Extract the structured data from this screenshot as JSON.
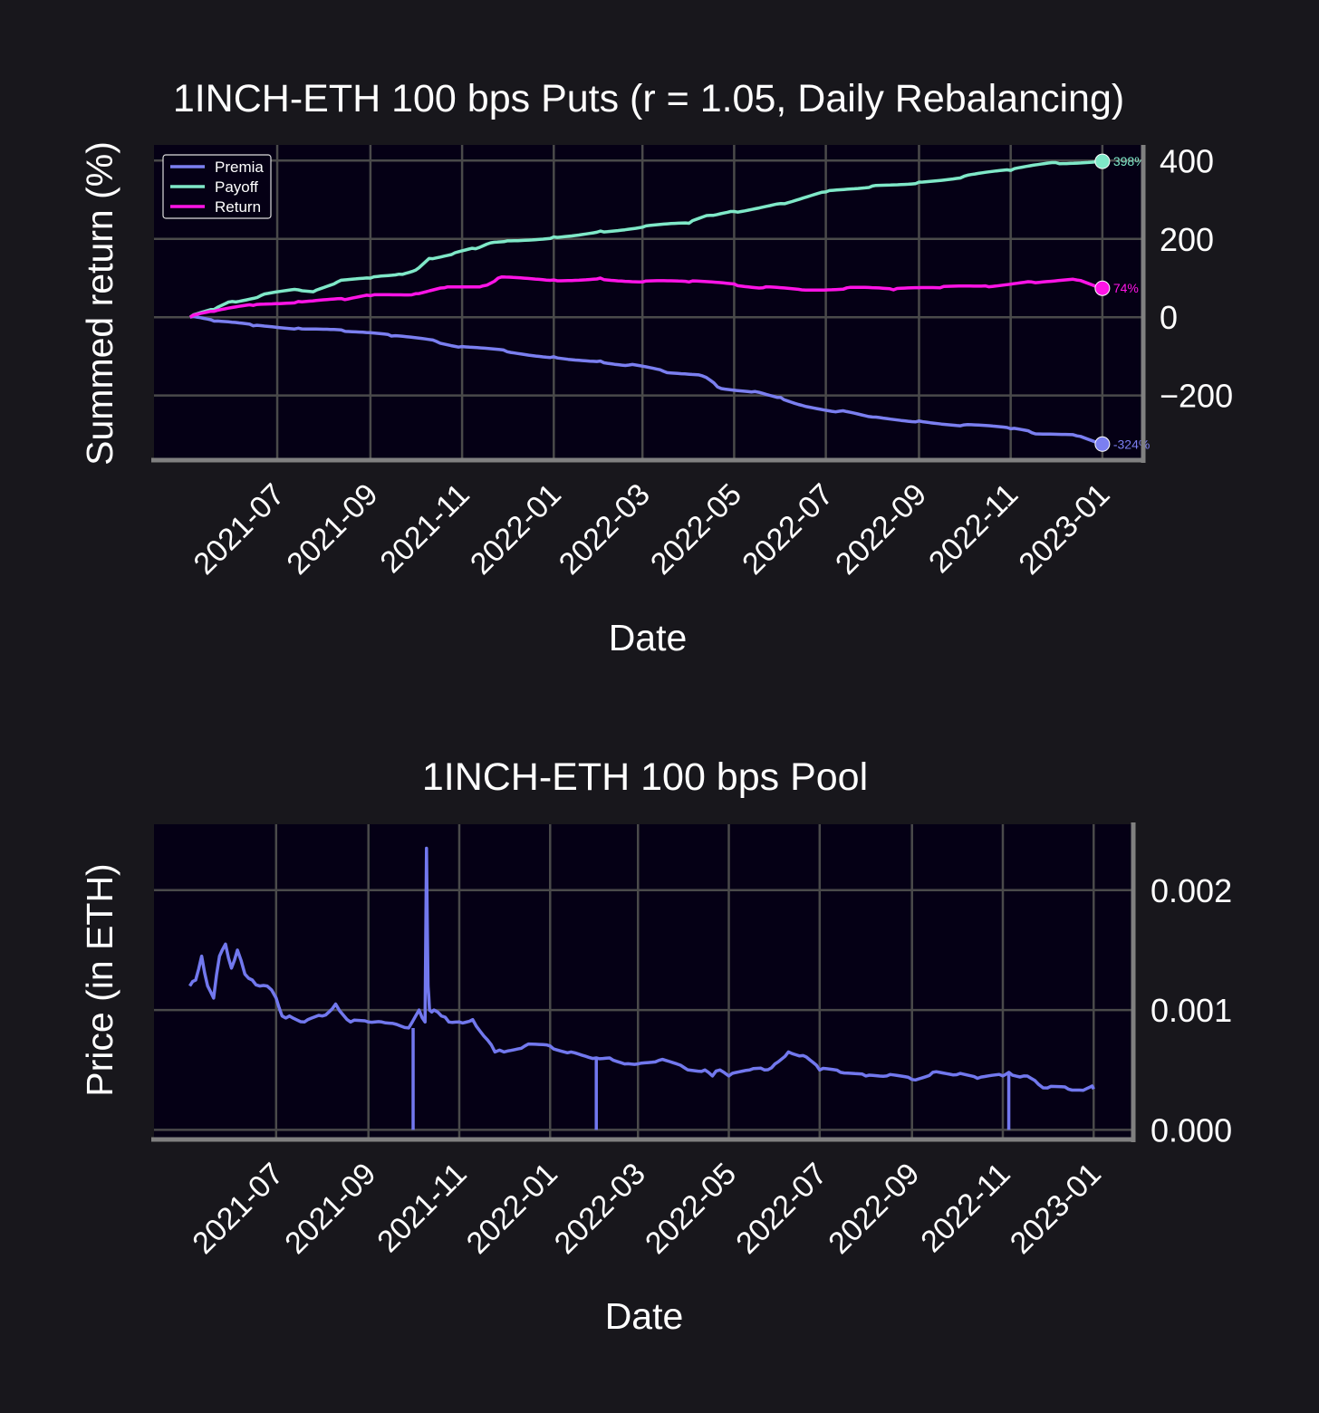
{
  "chart_data": [
    {
      "type": "line",
      "title": "1INCH-ETH 100 bps Puts (r = 1.05, Daily Rebalancing)",
      "xlabel": "Date",
      "ylabel": "Summed return (%)",
      "x_ticks": [
        "2021-07",
        "2021-09",
        "2021-11",
        "2022-01",
        "2022-03",
        "2022-05",
        "2022-07",
        "2022-09",
        "2022-11",
        "2023-01"
      ],
      "y_ticks": [
        "400",
        "200",
        "0",
        "−200"
      ],
      "ylim": [
        -365,
        440
      ],
      "xlim": [
        "2021-04-10",
        "2023-01-27"
      ],
      "grid": true,
      "legend": "top-left",
      "series": [
        {
          "name": "Premia",
          "color": "#7b7ff0",
          "end_label": "-324%",
          "x": [
            "2021-05-04",
            "2021-05-20",
            "2021-06-15",
            "2021-07-15",
            "2021-08-15",
            "2021-09-15",
            "2021-10-15",
            "2021-11-01",
            "2021-12-01",
            "2022-01-01",
            "2022-02-01",
            "2022-02-20",
            "2022-03-15",
            "2022-04-10",
            "2022-04-20",
            "2022-05-15",
            "2022-06-01",
            "2022-06-15",
            "2022-07-10",
            "2022-08-01",
            "2022-09-01",
            "2022-10-01",
            "2022-11-01",
            "2022-11-15",
            "2022-12-15",
            "2023-01-01"
          ],
          "y": [
            0,
            -10,
            -22,
            -28,
            -36,
            -48,
            -62,
            -75,
            -88,
            -101,
            -112,
            -122,
            -138,
            -150,
            -178,
            -190,
            -205,
            -225,
            -240,
            -255,
            -265,
            -275,
            -285,
            -295,
            -303,
            -324
          ]
        },
        {
          "name": "Payoff",
          "color": "#7fe8c8",
          "end_label": "398%",
          "x": [
            "2021-05-04",
            "2021-05-20",
            "2021-06-01",
            "2021-06-20",
            "2021-07-15",
            "2021-07-25",
            "2021-08-10",
            "2021-09-01",
            "2021-09-20",
            "2021-10-01",
            "2021-10-10",
            "2021-10-25",
            "2021-11-10",
            "2021-11-20",
            "2021-12-01",
            "2022-01-01",
            "2022-02-01",
            "2022-03-01",
            "2022-04-01",
            "2022-04-15",
            "2022-05-01",
            "2022-06-01",
            "2022-07-01",
            "2022-08-01",
            "2022-09-01",
            "2022-10-01",
            "2022-11-01",
            "2022-12-01",
            "2023-01-01"
          ],
          "y": [
            0,
            20,
            40,
            55,
            70,
            65,
            90,
            100,
            110,
            120,
            150,
            160,
            175,
            190,
            195,
            205,
            220,
            230,
            240,
            260,
            270,
            290,
            320,
            335,
            345,
            360,
            375,
            395,
            398
          ]
        },
        {
          "name": "Return",
          "color": "#ff14e6",
          "end_label": "74%",
          "x": [
            "2021-05-04",
            "2021-05-20",
            "2021-06-15",
            "2021-07-15",
            "2021-08-15",
            "2021-09-01",
            "2021-10-01",
            "2021-10-20",
            "2021-11-15",
            "2021-11-25",
            "2022-01-01",
            "2022-02-01",
            "2022-03-01",
            "2022-04-01",
            "2022-05-01",
            "2022-05-20",
            "2022-06-15",
            "2022-07-15",
            "2022-08-15",
            "2022-09-15",
            "2022-10-15",
            "2022-11-15",
            "2022-12-15",
            "2023-01-01"
          ],
          "y": [
            0,
            15,
            30,
            40,
            45,
            55,
            60,
            75,
            80,
            100,
            95,
            100,
            90,
            90,
            85,
            75,
            70,
            75,
            70,
            75,
            80,
            90,
            95,
            74
          ]
        }
      ]
    },
    {
      "type": "line",
      "title": "1INCH-ETH 100 bps Pool",
      "xlabel": "Date",
      "ylabel": "Price (in ETH)",
      "x_ticks": [
        "2021-07",
        "2021-09",
        "2021-11",
        "2022-01",
        "2022-03",
        "2022-05",
        "2022-07",
        "2022-09",
        "2022-11",
        "2023-01"
      ],
      "y_ticks": [
        "0.002",
        "0.001",
        "0.000"
      ],
      "ylim": [
        -8e-05,
        0.00255
      ],
      "xlim": [
        "2021-04-10",
        "2023-01-27"
      ],
      "grid": true,
      "series": [
        {
          "name": "Price",
          "color": "#7278ee",
          "x": [
            "2021-05-04",
            "2021-05-08",
            "2021-05-12",
            "2021-05-16",
            "2021-05-20",
            "2021-05-24",
            "2021-05-28",
            "2021-06-01",
            "2021-06-05",
            "2021-06-10",
            "2021-06-15",
            "2021-06-20",
            "2021-06-25",
            "2021-07-01",
            "2021-07-05",
            "2021-07-10",
            "2021-07-20",
            "2021-08-01",
            "2021-08-10",
            "2021-08-20",
            "2021-09-01",
            "2021-09-10",
            "2021-09-20",
            "2021-09-28",
            "2021-10-05",
            "2021-10-09",
            "2021-10-10",
            "2021-10-11",
            "2021-10-12",
            "2021-10-15",
            "2021-10-20",
            "2021-10-25",
            "2021-11-01",
            "2021-11-10",
            "2021-11-20",
            "2021-11-25",
            "2021-12-01",
            "2021-12-15",
            "2022-01-01",
            "2022-01-15",
            "2022-02-01",
            "2022-02-10",
            "2022-02-20",
            "2022-03-01",
            "2022-03-15",
            "2022-04-01",
            "2022-04-15",
            "2022-04-20",
            "2022-04-25",
            "2022-05-01",
            "2022-05-15",
            "2022-05-25",
            "2022-06-01",
            "2022-06-10",
            "2022-06-20",
            "2022-07-01",
            "2022-07-15",
            "2022-08-01",
            "2022-08-15",
            "2022-09-01",
            "2022-09-15",
            "2022-10-01",
            "2022-10-15",
            "2022-11-01",
            "2022-11-05",
            "2022-11-15",
            "2022-11-25",
            "2022-12-01",
            "2022-12-15",
            "2022-12-25",
            "2022-12-30",
            "2023-01-01"
          ],
          "y": [
            0.0012,
            0.00125,
            0.00145,
            0.0012,
            0.0011,
            0.00145,
            0.00155,
            0.00135,
            0.0015,
            0.0013,
            0.00125,
            0.0012,
            0.0012,
            0.0011,
            0.00095,
            0.00095,
            0.0009,
            0.00095,
            0.00105,
            0.0009,
            0.0009,
            0.0009,
            0.00088,
            0.00085,
            0.001,
            0.0009,
            0.00235,
            0.0012,
            0.001,
            0.001,
            0.00095,
            0.0009,
            0.0009,
            0.00092,
            0.00075,
            0.00065,
            0.00065,
            0.0007,
            0.0007,
            0.00065,
            0.0006,
            0.0006,
            0.00055,
            0.00055,
            0.00058,
            0.00052,
            0.0005,
            0.00045,
            0.0005,
            0.00045,
            0.0005,
            0.0005,
            0.00055,
            0.00065,
            0.00062,
            0.0005,
            0.00048,
            0.00045,
            0.00045,
            0.00042,
            0.00048,
            0.00046,
            0.00043,
            0.00045,
            0.00048,
            0.00045,
            0.00038,
            0.00035,
            0.00034,
            0.00033,
            0.00036,
            0.00034
          ]
        }
      ],
      "drops_to_zero": [
        "2021-10-01",
        "2022-02-01",
        "2022-11-05"
      ]
    }
  ]
}
